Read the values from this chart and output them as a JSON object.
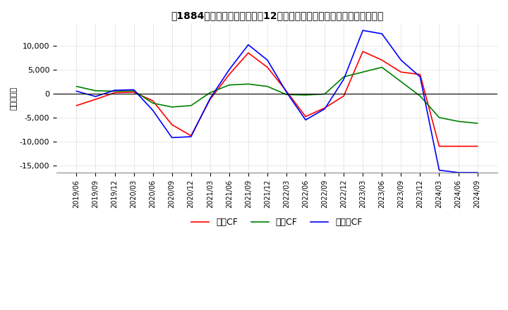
{
  "title": "　1884　キャッシュフローの12か月移動合計の対前年同期増減額の推移",
  "ylabel": "（百万円）",
  "ylim": [
    -16500,
    14500
  ],
  "yticks": [
    -15000,
    -10000,
    -5000,
    0,
    5000,
    10000
  ],
  "series": {
    "営業CF": {
      "color": "#ff0000",
      "data": [
        [
          "2019/06",
          -2500
        ],
        [
          "2019/09",
          -1200
        ],
        [
          "2019/12",
          200
        ],
        [
          "2020/03",
          300
        ],
        [
          "2020/06",
          -1500
        ],
        [
          "2020/09",
          -6500
        ],
        [
          "2020/12",
          -8800
        ],
        [
          "2021/03",
          -1200
        ],
        [
          "2021/06",
          4000
        ],
        [
          "2021/09",
          8500
        ],
        [
          "2021/12",
          5500
        ],
        [
          "2022/03",
          500
        ],
        [
          "2022/06",
          -4800
        ],
        [
          "2022/09",
          -3000
        ],
        [
          "2022/12",
          -500
        ],
        [
          "2023/03",
          8800
        ],
        [
          "2023/06",
          7000
        ],
        [
          "2023/09",
          4500
        ],
        [
          "2023/12",
          4000
        ],
        [
          "2024/03",
          -11000
        ],
        [
          "2024/06",
          -11000
        ],
        [
          "2024/09",
          -11000
        ]
      ]
    },
    "投資CF": {
      "color": "#008000",
      "data": [
        [
          "2019/06",
          1500
        ],
        [
          "2019/09",
          600
        ],
        [
          "2019/12",
          500
        ],
        [
          "2020/03",
          600
        ],
        [
          "2020/06",
          -2000
        ],
        [
          "2020/09",
          -2800
        ],
        [
          "2020/12",
          -2500
        ],
        [
          "2021/03",
          200
        ],
        [
          "2021/06",
          1800
        ],
        [
          "2021/09",
          2000
        ],
        [
          "2021/12",
          1500
        ],
        [
          "2022/03",
          -200
        ],
        [
          "2022/06",
          -300
        ],
        [
          "2022/09",
          -100
        ],
        [
          "2022/12",
          3500
        ],
        [
          "2023/03",
          4500
        ],
        [
          "2023/06",
          5500
        ],
        [
          "2023/09",
          2500
        ],
        [
          "2023/12",
          -500
        ],
        [
          "2024/03",
          -5000
        ],
        [
          "2024/06",
          -5800
        ],
        [
          "2024/09",
          -6200
        ]
      ]
    },
    "フリーCF": {
      "color": "#0000ff",
      "data": [
        [
          "2019/06",
          500
        ],
        [
          "2019/09",
          -600
        ],
        [
          "2019/12",
          700
        ],
        [
          "2020/03",
          800
        ],
        [
          "2020/06",
          -3500
        ],
        [
          "2020/09",
          -9200
        ],
        [
          "2020/12",
          -9000
        ],
        [
          "2021/03",
          -1000
        ],
        [
          "2021/06",
          5000
        ],
        [
          "2021/09",
          10200
        ],
        [
          "2021/12",
          7000
        ],
        [
          "2022/03",
          300
        ],
        [
          "2022/06",
          -5500
        ],
        [
          "2022/09",
          -3200
        ],
        [
          "2022/12",
          3000
        ],
        [
          "2023/03",
          13200
        ],
        [
          "2023/06",
          12500
        ],
        [
          "2023/09",
          7000
        ],
        [
          "2023/12",
          3500
        ],
        [
          "2024/03",
          -16000
        ],
        [
          "2024/06",
          -16500
        ],
        [
          "2024/09",
          -16500
        ]
      ]
    }
  },
  "xtick_labels": [
    "2019/06",
    "2019/09",
    "2019/12",
    "2020/03",
    "2020/06",
    "2020/09",
    "2020/12",
    "2021/03",
    "2021/06",
    "2021/09",
    "2021/12",
    "2022/03",
    "2022/06",
    "2022/09",
    "2022/12",
    "2023/03",
    "2023/06",
    "2023/09",
    "2023/12",
    "2024/03",
    "2024/06",
    "2024/09"
  ]
}
